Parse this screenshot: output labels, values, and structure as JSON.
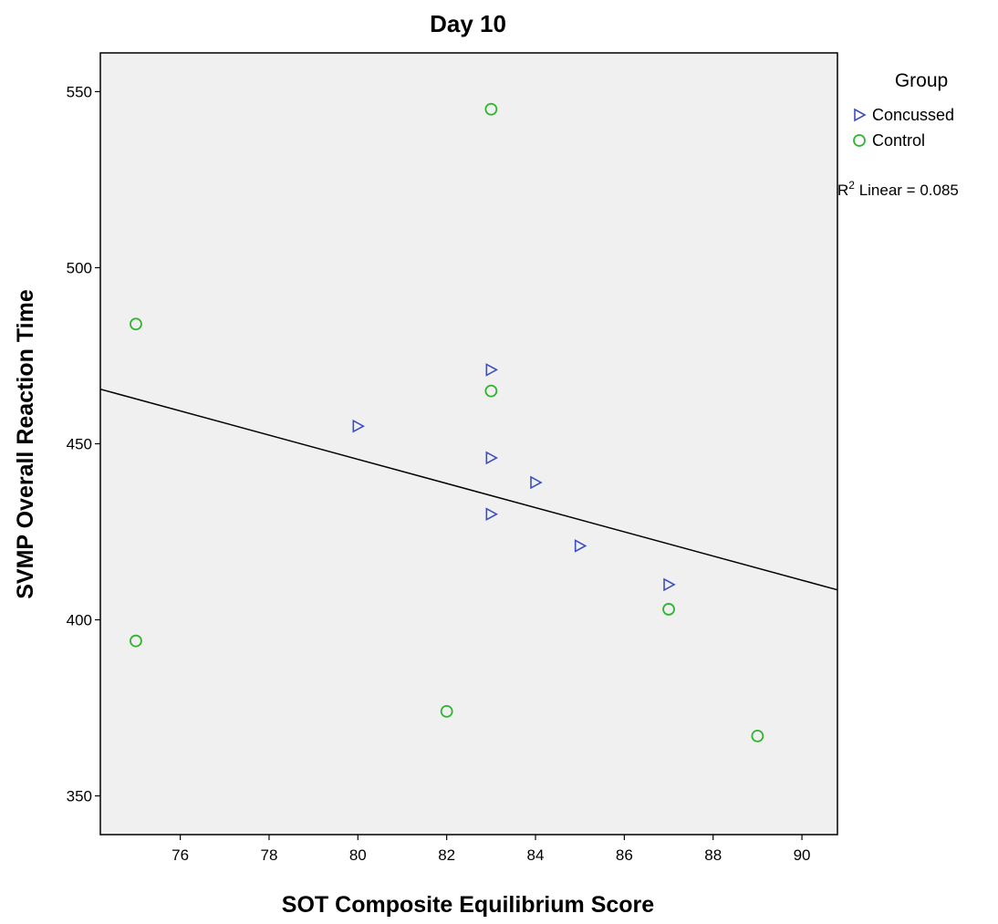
{
  "chart_data": {
    "type": "scatter",
    "title": "Day 10",
    "xlabel": "SOT Composite Equilibrium Score",
    "ylabel": "SVMP Overall Reaction Time",
    "xlim": [
      74.2,
      90.8
    ],
    "ylim": [
      339,
      561
    ],
    "xticks": [
      76,
      78,
      80,
      82,
      84,
      86,
      88,
      90
    ],
    "yticks": [
      350,
      400,
      450,
      500,
      550
    ],
    "grid": false,
    "legend": {
      "title": "Group",
      "placement": "right",
      "entries": [
        "Concussed",
        "Control"
      ]
    },
    "series": [
      {
        "name": "Concussed",
        "marker": "triangle-right",
        "color": "#3c4fc0",
        "points": [
          {
            "x": 80,
            "y": 455
          },
          {
            "x": 83,
            "y": 471
          },
          {
            "x": 83,
            "y": 446
          },
          {
            "x": 83,
            "y": 430
          },
          {
            "x": 84,
            "y": 439
          },
          {
            "x": 85,
            "y": 421
          },
          {
            "x": 87,
            "y": 410
          }
        ]
      },
      {
        "name": "Control",
        "marker": "circle",
        "color": "#2fb52f",
        "points": [
          {
            "x": 75,
            "y": 484
          },
          {
            "x": 75,
            "y": 394
          },
          {
            "x": 82,
            "y": 374
          },
          {
            "x": 83,
            "y": 545
          },
          {
            "x": 83,
            "y": 465
          },
          {
            "x": 87,
            "y": 403
          },
          {
            "x": 89,
            "y": 367
          }
        ]
      }
    ],
    "fit_line": {
      "label_prefix": "R",
      "label_sup": "2",
      "label_suffix": " Linear = 0.085",
      "x": [
        74.2,
        90.8
      ],
      "y": [
        465.5,
        408.5
      ],
      "color": "#000000"
    },
    "plot_background": "#f0f0f0"
  }
}
